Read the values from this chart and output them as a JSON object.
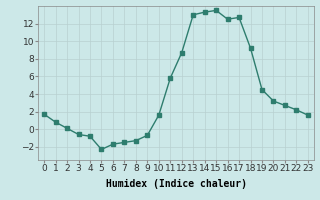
{
  "x": [
    0,
    1,
    2,
    3,
    4,
    5,
    6,
    7,
    8,
    9,
    10,
    11,
    12,
    13,
    14,
    15,
    16,
    17,
    18,
    19,
    20,
    21,
    22,
    23
  ],
  "y": [
    1.7,
    0.8,
    0.1,
    -0.6,
    -0.8,
    -2.3,
    -1.7,
    -1.5,
    -1.3,
    -0.7,
    1.6,
    5.8,
    8.7,
    13.0,
    13.3,
    13.5,
    12.5,
    12.7,
    9.2,
    4.5,
    3.2,
    2.7,
    2.2,
    1.6
  ],
  "line_color": "#2e7d6e",
  "marker": "s",
  "marker_size": 2.2,
  "line_width": 1.0,
  "xlabel": "Humidex (Indice chaleur)",
  "xlim": [
    -0.5,
    23.5
  ],
  "ylim": [
    -3.5,
    14.0
  ],
  "yticks": [
    -2,
    0,
    2,
    4,
    6,
    8,
    10,
    12
  ],
  "xticks": [
    0,
    1,
    2,
    3,
    4,
    5,
    6,
    7,
    8,
    9,
    10,
    11,
    12,
    13,
    14,
    15,
    16,
    17,
    18,
    19,
    20,
    21,
    22,
    23
  ],
  "xtick_labels": [
    "0",
    "1",
    "2",
    "3",
    "4",
    "5",
    "6",
    "7",
    "8",
    "9",
    "10",
    "11",
    "12",
    "13",
    "14",
    "15",
    "16",
    "17",
    "18",
    "19",
    "20",
    "21",
    "22",
    "23"
  ],
  "background_color": "#cce8e8",
  "grid_color": "#b8d0d0",
  "xlabel_fontsize": 7,
  "tick_fontsize": 6.5
}
